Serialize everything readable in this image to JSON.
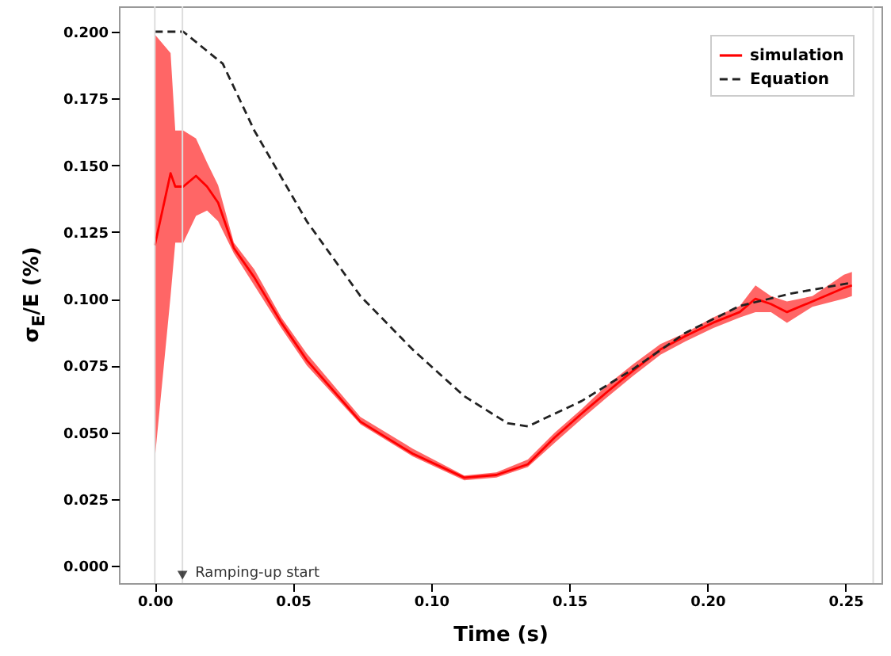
{
  "chart_data": {
    "type": "line",
    "xlabel": "Time (s)",
    "ylabel": "σ$_{E}$/E (%)",
    "xlim": [
      -0.013,
      0.263
    ],
    "ylim": [
      -0.0065,
      0.2095
    ],
    "xticks": [
      {
        "value": 0,
        "label": "0.00"
      },
      {
        "value": 0.05,
        "label": "0.05"
      },
      {
        "value": 0.1,
        "label": "0.10"
      },
      {
        "value": 0.15,
        "label": "0.15"
      },
      {
        "value": 0.2,
        "label": "0.20"
      },
      {
        "value": 0.25,
        "label": "0.25"
      }
    ],
    "yticks": [
      {
        "value": 0,
        "label": "0.000"
      },
      {
        "value": 0.025,
        "label": "0.025"
      },
      {
        "value": 0.05,
        "label": "0.050"
      },
      {
        "value": 0.075,
        "label": "0.075"
      },
      {
        "value": 0.1,
        "label": "0.100"
      },
      {
        "value": 0.125,
        "label": "0.125"
      },
      {
        "value": 0.15,
        "label": "0.150"
      },
      {
        "value": 0.175,
        "label": "0.175"
      },
      {
        "value": 0.2,
        "label": "0.200"
      }
    ],
    "grid": false,
    "legend": "top right",
    "marker": "none",
    "series": [
      {
        "name": "simulation",
        "color": "#ff0000",
        "line_style": "solid",
        "x": [
          0,
          0.0057,
          0.0074,
          0.0103,
          0.0149,
          0.0189,
          0.0229,
          0.0286,
          0.036,
          0.0458,
          0.055,
          0.0744,
          0.0933,
          0.112,
          0.1236,
          0.135,
          0.1447,
          0.1545,
          0.1636,
          0.173,
          0.183,
          0.192,
          0.202,
          0.2117,
          0.2174,
          0.223,
          0.2288,
          0.238,
          0.2494,
          0.2523
        ],
        "values": [
          0.12,
          0.147,
          0.142,
          0.142,
          0.146,
          0.142,
          0.136,
          0.119,
          0.108,
          0.091,
          0.077,
          0.054,
          0.042,
          0.033,
          0.034,
          0.038,
          0.048,
          0.057,
          0.065,
          0.073,
          0.081,
          0.086,
          0.091,
          0.095,
          0.1,
          0.098,
          0.095,
          0.099,
          0.104,
          0.105
        ],
        "lower": [
          0.04,
          0.101,
          0.121,
          0.121,
          0.131,
          0.133,
          0.129,
          0.117,
          0.105,
          0.089,
          0.075,
          0.053,
          0.041,
          0.032,
          0.033,
          0.037,
          0.046,
          0.055,
          0.063,
          0.071,
          0.079,
          0.084,
          0.089,
          0.093,
          0.095,
          0.095,
          0.091,
          0.097,
          0.1,
          0.101
        ],
        "upper": [
          0.199,
          0.192,
          0.163,
          0.163,
          0.16,
          0.151,
          0.1425,
          0.121,
          0.111,
          0.093,
          0.0795,
          0.0557,
          0.0439,
          0.0338,
          0.035,
          0.0398,
          0.0498,
          0.0587,
          0.0676,
          0.0754,
          0.083,
          0.0872,
          0.093,
          0.0973,
          0.105,
          0.101,
          0.099,
          0.101,
          0.109,
          0.11
        ]
      },
      {
        "name": "Equation",
        "color": "#222222",
        "line_style": "dashed",
        "x": [
          0,
          0.0103,
          0.0246,
          0.036,
          0.055,
          0.0744,
          0.0933,
          0.112,
          0.1276,
          0.135,
          0.1545,
          0.173,
          0.192,
          0.2117,
          0.2305,
          0.2523
        ],
        "values": [
          0.2,
          0.2,
          0.188,
          0.163,
          0.129,
          0.101,
          0.081,
          0.0635,
          0.0534,
          0.0522,
          0.0617,
          0.0736,
          0.0872,
          0.0973,
          0.102,
          0.106
        ]
      }
    ],
    "ref_lines": [
      {
        "axis": "x",
        "value": 0,
        "color": "#dddddd"
      },
      {
        "axis": "x",
        "value": 0.01,
        "label": "Ramping-up start",
        "color": "#dddddd"
      },
      {
        "axis": "x",
        "value": 0.26,
        "color": "#dddddd"
      }
    ]
  }
}
